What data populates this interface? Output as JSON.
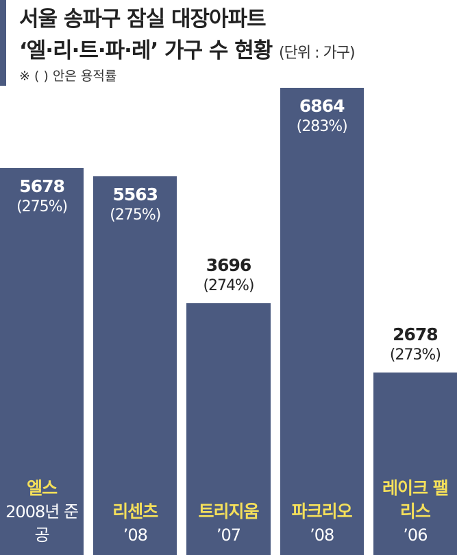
{
  "chart_data": {
    "type": "bar",
    "title": "서울 송파구 잠실 대장아파트",
    "subtitle": "‘엘·리·트·파·레’ 가구 수 현황",
    "unit": "(단위 : 가구)",
    "note": "※ ( ) 안은 용적률",
    "categories": [
      "엘스",
      "리센츠",
      "트리지움",
      "파크리오",
      "레이크 팰리스"
    ],
    "completion": [
      "2008년 준공",
      "’08",
      "’07",
      "’08",
      "’06"
    ],
    "values": [
      5678,
      5563,
      3696,
      6864,
      2678
    ],
    "ratio_labels": [
      "(275%)",
      "(275%)",
      "(274%)",
      "(283%)",
      "(273%)"
    ],
    "color": "#4b5a80",
    "ylim": [
      0,
      8150
    ]
  }
}
